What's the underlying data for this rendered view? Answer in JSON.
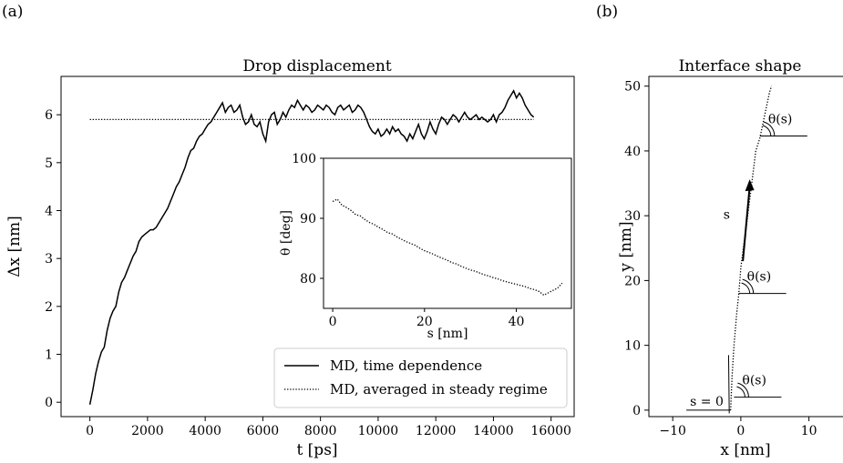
{
  "panels": {
    "a_label": "(a)",
    "b_label": "(b)"
  },
  "chart_data": [
    {
      "type": "line",
      "title": "Drop displacement",
      "xlabel": "t [ps]",
      "ylabel": "Δx [nm]",
      "xlim": [
        -1000,
        16800
      ],
      "ylim": [
        -0.3,
        6.8
      ],
      "xticks": [
        "0",
        "2000",
        "4000",
        "6000",
        "8000",
        "10000",
        "12000",
        "14000",
        "16000"
      ],
      "yticks": [
        "0",
        "1",
        "2",
        "3",
        "4",
        "5",
        "6"
      ],
      "series": [
        {
          "name": "MD, time dependence",
          "style": "solid",
          "points": [
            [
              0,
              -0.05
            ],
            [
              100,
              0.25
            ],
            [
              200,
              0.6
            ],
            [
              300,
              0.85
            ],
            [
              400,
              1.05
            ],
            [
              500,
              1.15
            ],
            [
              600,
              1.5
            ],
            [
              700,
              1.75
            ],
            [
              800,
              1.9
            ],
            [
              900,
              2.0
            ],
            [
              1000,
              2.3
            ],
            [
              1100,
              2.5
            ],
            [
              1200,
              2.6
            ],
            [
              1300,
              2.75
            ],
            [
              1400,
              2.9
            ],
            [
              1500,
              3.05
            ],
            [
              1600,
              3.15
            ],
            [
              1700,
              3.35
            ],
            [
              1800,
              3.45
            ],
            [
              1900,
              3.5
            ],
            [
              2000,
              3.55
            ],
            [
              2100,
              3.6
            ],
            [
              2200,
              3.6
            ],
            [
              2300,
              3.65
            ],
            [
              2400,
              3.75
            ],
            [
              2500,
              3.85
            ],
            [
              2600,
              3.95
            ],
            [
              2700,
              4.05
            ],
            [
              2800,
              4.2
            ],
            [
              2900,
              4.35
            ],
            [
              3000,
              4.5
            ],
            [
              3100,
              4.6
            ],
            [
              3200,
              4.75
            ],
            [
              3300,
              4.9
            ],
            [
              3400,
              5.1
            ],
            [
              3500,
              5.25
            ],
            [
              3600,
              5.3
            ],
            [
              3700,
              5.45
            ],
            [
              3800,
              5.55
            ],
            [
              3900,
              5.6
            ],
            [
              4000,
              5.7
            ],
            [
              4100,
              5.8
            ],
            [
              4200,
              5.85
            ],
            [
              4300,
              5.95
            ],
            [
              4400,
              6.05
            ],
            [
              4500,
              6.15
            ],
            [
              4600,
              6.25
            ],
            [
              4700,
              6.05
            ],
            [
              4800,
              6.15
            ],
            [
              4900,
              6.2
            ],
            [
              5000,
              6.05
            ],
            [
              5100,
              6.1
            ],
            [
              5200,
              6.2
            ],
            [
              5300,
              5.95
            ],
            [
              5400,
              5.8
            ],
            [
              5500,
              5.85
            ],
            [
              5600,
              6.0
            ],
            [
              5700,
              5.8
            ],
            [
              5800,
              5.75
            ],
            [
              5900,
              5.85
            ],
            [
              6000,
              5.6
            ],
            [
              6100,
              5.45
            ],
            [
              6200,
              5.85
            ],
            [
              6300,
              6.0
            ],
            [
              6400,
              6.05
            ],
            [
              6500,
              5.8
            ],
            [
              6600,
              5.9
            ],
            [
              6700,
              6.05
            ],
            [
              6800,
              5.95
            ],
            [
              6900,
              6.1
            ],
            [
              7000,
              6.2
            ],
            [
              7100,
              6.15
            ],
            [
              7200,
              6.3
            ],
            [
              7300,
              6.2
            ],
            [
              7400,
              6.1
            ],
            [
              7500,
              6.2
            ],
            [
              7600,
              6.15
            ],
            [
              7700,
              6.05
            ],
            [
              7800,
              6.1
            ],
            [
              7900,
              6.2
            ],
            [
              8000,
              6.15
            ],
            [
              8100,
              6.1
            ],
            [
              8200,
              6.2
            ],
            [
              8300,
              6.15
            ],
            [
              8400,
              6.05
            ],
            [
              8500,
              6.0
            ],
            [
              8600,
              6.15
            ],
            [
              8700,
              6.2
            ],
            [
              8800,
              6.1
            ],
            [
              8900,
              6.15
            ],
            [
              9000,
              6.2
            ],
            [
              9100,
              6.05
            ],
            [
              9200,
              6.1
            ],
            [
              9300,
              6.2
            ],
            [
              9400,
              6.15
            ],
            [
              9500,
              6.05
            ],
            [
              9600,
              5.9
            ],
            [
              9700,
              5.75
            ],
            [
              9800,
              5.65
            ],
            [
              9900,
              5.6
            ],
            [
              10000,
              5.7
            ],
            [
              10100,
              5.55
            ],
            [
              10200,
              5.6
            ],
            [
              10300,
              5.7
            ],
            [
              10400,
              5.6
            ],
            [
              10500,
              5.75
            ],
            [
              10600,
              5.65
            ],
            [
              10700,
              5.7
            ],
            [
              10800,
              5.6
            ],
            [
              10900,
              5.55
            ],
            [
              11000,
              5.45
            ],
            [
              11100,
              5.6
            ],
            [
              11200,
              5.5
            ],
            [
              11300,
              5.65
            ],
            [
              11400,
              5.8
            ],
            [
              11500,
              5.6
            ],
            [
              11600,
              5.5
            ],
            [
              11700,
              5.65
            ],
            [
              11800,
              5.85
            ],
            [
              11900,
              5.7
            ],
            [
              12000,
              5.6
            ],
            [
              12100,
              5.8
            ],
            [
              12200,
              5.95
            ],
            [
              12300,
              5.9
            ],
            [
              12400,
              5.8
            ],
            [
              12500,
              5.9
            ],
            [
              12600,
              6.0
            ],
            [
              12700,
              5.95
            ],
            [
              12800,
              5.85
            ],
            [
              12900,
              5.95
            ],
            [
              13000,
              6.05
            ],
            [
              13100,
              5.95
            ],
            [
              13200,
              5.9
            ],
            [
              13300,
              5.95
            ],
            [
              13400,
              6.0
            ],
            [
              13500,
              5.9
            ],
            [
              13600,
              5.95
            ],
            [
              13700,
              5.9
            ],
            [
              13800,
              5.85
            ],
            [
              13900,
              5.9
            ],
            [
              14000,
              6.0
            ],
            [
              14100,
              5.85
            ],
            [
              14200,
              6.0
            ],
            [
              14300,
              6.05
            ],
            [
              14400,
              6.15
            ],
            [
              14500,
              6.3
            ],
            [
              14600,
              6.4
            ],
            [
              14700,
              6.5
            ],
            [
              14800,
              6.35
            ],
            [
              14900,
              6.45
            ],
            [
              15000,
              6.35
            ],
            [
              15100,
              6.2
            ],
            [
              15200,
              6.1
            ],
            [
              15300,
              6.0
            ],
            [
              15400,
              5.95
            ]
          ]
        },
        {
          "name": "MD, averaged in steady regime",
          "style": "dotted",
          "points": [
            [
              0,
              5.9
            ],
            [
              15400,
              5.9
            ]
          ]
        }
      ],
      "legend_position": "lower-right",
      "inset": {
        "type": "line",
        "xlabel": "s [nm]",
        "ylabel": "θ [deg]",
        "xlim": [
          -2,
          52
        ],
        "ylim": [
          75,
          100
        ],
        "xticks": [
          "0",
          "20",
          "40"
        ],
        "yticks": [
          "80",
          "90",
          "100"
        ],
        "series": [
          {
            "style": "dotted",
            "points": [
              [
                0,
                92.8
              ],
              [
                1,
                93.2
              ],
              [
                2,
                92.2
              ],
              [
                3,
                91.8
              ],
              [
                4,
                91.3
              ],
              [
                5,
                90.6
              ],
              [
                6,
                90.4
              ],
              [
                7,
                89.8
              ],
              [
                8,
                89.3
              ],
              [
                9,
                89.0
              ],
              [
                10,
                88.5
              ],
              [
                11,
                88.1
              ],
              [
                12,
                87.6
              ],
              [
                13,
                87.4
              ],
              [
                14,
                86.9
              ],
              [
                15,
                86.5
              ],
              [
                16,
                86.1
              ],
              [
                17,
                85.8
              ],
              [
                18,
                85.5
              ],
              [
                19,
                85.0
              ],
              [
                20,
                84.6
              ],
              [
                21,
                84.3
              ],
              [
                22,
                84.0
              ],
              [
                23,
                83.6
              ],
              [
                24,
                83.3
              ],
              [
                25,
                83.0
              ],
              [
                26,
                82.6
              ],
              [
                27,
                82.4
              ],
              [
                28,
                82.0
              ],
              [
                29,
                81.7
              ],
              [
                30,
                81.4
              ],
              [
                31,
                81.2
              ],
              [
                32,
                80.9
              ],
              [
                33,
                80.6
              ],
              [
                34,
                80.4
              ],
              [
                35,
                80.1
              ],
              [
                36,
                79.9
              ],
              [
                37,
                79.6
              ],
              [
                38,
                79.4
              ],
              [
                39,
                79.2
              ],
              [
                40,
                79.0
              ],
              [
                41,
                78.8
              ],
              [
                42,
                78.6
              ],
              [
                43,
                78.3
              ],
              [
                44,
                78.1
              ],
              [
                45,
                77.8
              ],
              [
                46,
                77.2
              ],
              [
                47,
                77.6
              ],
              [
                48,
                78.0
              ],
              [
                49,
                78.4
              ],
              [
                50,
                79.2
              ]
            ]
          }
        ]
      }
    },
    {
      "type": "line",
      "title": "Interface shape",
      "xlabel": "x [nm]",
      "ylabel": "y [nm]",
      "xlim": [
        -13.5,
        15
      ],
      "ylim": [
        -1,
        51.5
      ],
      "xticks": [
        "−10",
        "0",
        "10"
      ],
      "yticks": [
        "0",
        "10",
        "20",
        "30",
        "40",
        "50"
      ],
      "series": [
        {
          "style": "dotted",
          "points": [
            [
              -1.5,
              0
            ],
            [
              -1.3,
              5
            ],
            [
              -1.0,
              10
            ],
            [
              -0.6,
              15
            ],
            [
              -0.3,
              18
            ],
            [
              0,
              22
            ],
            [
              0.5,
              26
            ],
            [
              1.0,
              30
            ],
            [
              1.6,
              35
            ],
            [
              2.2,
              40
            ],
            [
              2.8,
              42
            ],
            [
              3.4,
              45
            ],
            [
              4.2,
              49
            ],
            [
              4.5,
              50
            ]
          ]
        }
      ],
      "annotations": {
        "s_label": "s",
        "s0_label": "s = 0",
        "theta_labels": [
          "θ(s)",
          "θ(s)",
          "θ(s)"
        ]
      }
    }
  ]
}
